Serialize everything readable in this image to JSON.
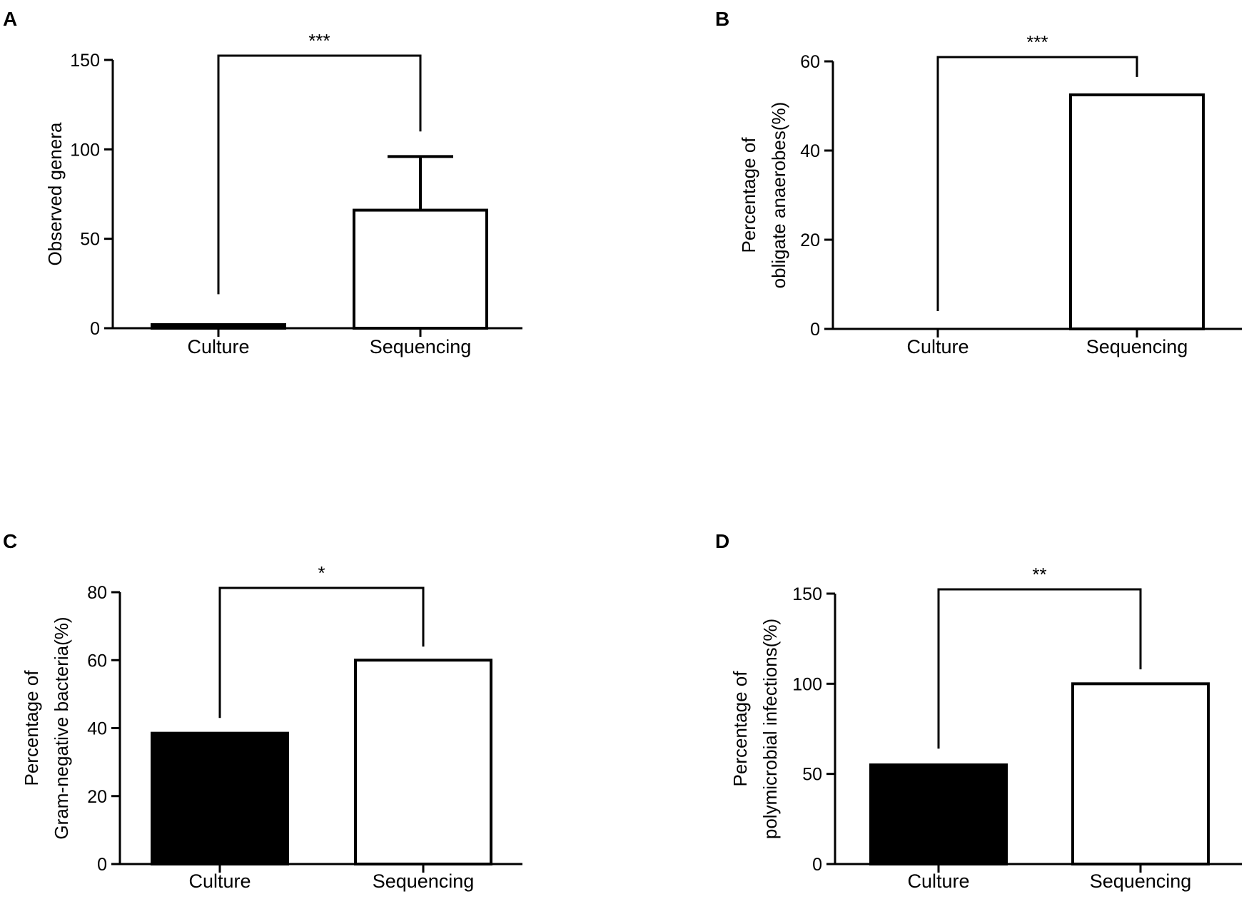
{
  "chart_data": [
    {
      "type": "bar",
      "panel": "A",
      "categories": [
        "Culture",
        "Sequencing"
      ],
      "values": [
        2,
        66
      ],
      "error_upper": [
        2,
        96
      ],
      "fills": [
        "#000000",
        "#ffffff"
      ],
      "ylabel": [
        "Observed genera"
      ],
      "yticks": [
        0,
        50,
        100,
        150
      ],
      "ylim": [
        0,
        150
      ],
      "significance": {
        "label": "***",
        "left_top": 19,
        "right_top": 110
      }
    },
    {
      "type": "bar",
      "panel": "B",
      "categories": [
        "Culture",
        "Sequencing"
      ],
      "values": [
        0,
        52.5
      ],
      "fills": [
        "#000000",
        "#ffffff"
      ],
      "ylabel": [
        "Percentage of",
        "obligate anaerobes(%)"
      ],
      "yticks": [
        0,
        20,
        40,
        60
      ],
      "ylim": [
        0,
        60
      ],
      "significance": {
        "label": "***",
        "left_top": 4,
        "right_top": 56.5
      }
    },
    {
      "type": "bar",
      "panel": "C",
      "categories": [
        "Culture",
        "Sequencing"
      ],
      "values": [
        38.5,
        60
      ],
      "fills": [
        "#000000",
        "#ffffff"
      ],
      "ylabel": [
        "Percentage of",
        "Gram-negative bacteria(%)"
      ],
      "yticks": [
        0,
        20,
        40,
        60,
        80
      ],
      "ylim": [
        0,
        80
      ],
      "significance": {
        "label": "*",
        "left_top": 43,
        "right_top": 64
      }
    },
    {
      "type": "bar",
      "panel": "D",
      "categories": [
        "Culture",
        "Sequencing"
      ],
      "values": [
        55,
        100
      ],
      "fills": [
        "#000000",
        "#ffffff"
      ],
      "ylabel": [
        "Percentage of",
        "polymicrobial infections(%)"
      ],
      "yticks": [
        0,
        50,
        100,
        150
      ],
      "ylim": [
        0,
        150
      ],
      "significance": {
        "label": "**",
        "left_top": 64,
        "right_top": 108
      }
    }
  ]
}
